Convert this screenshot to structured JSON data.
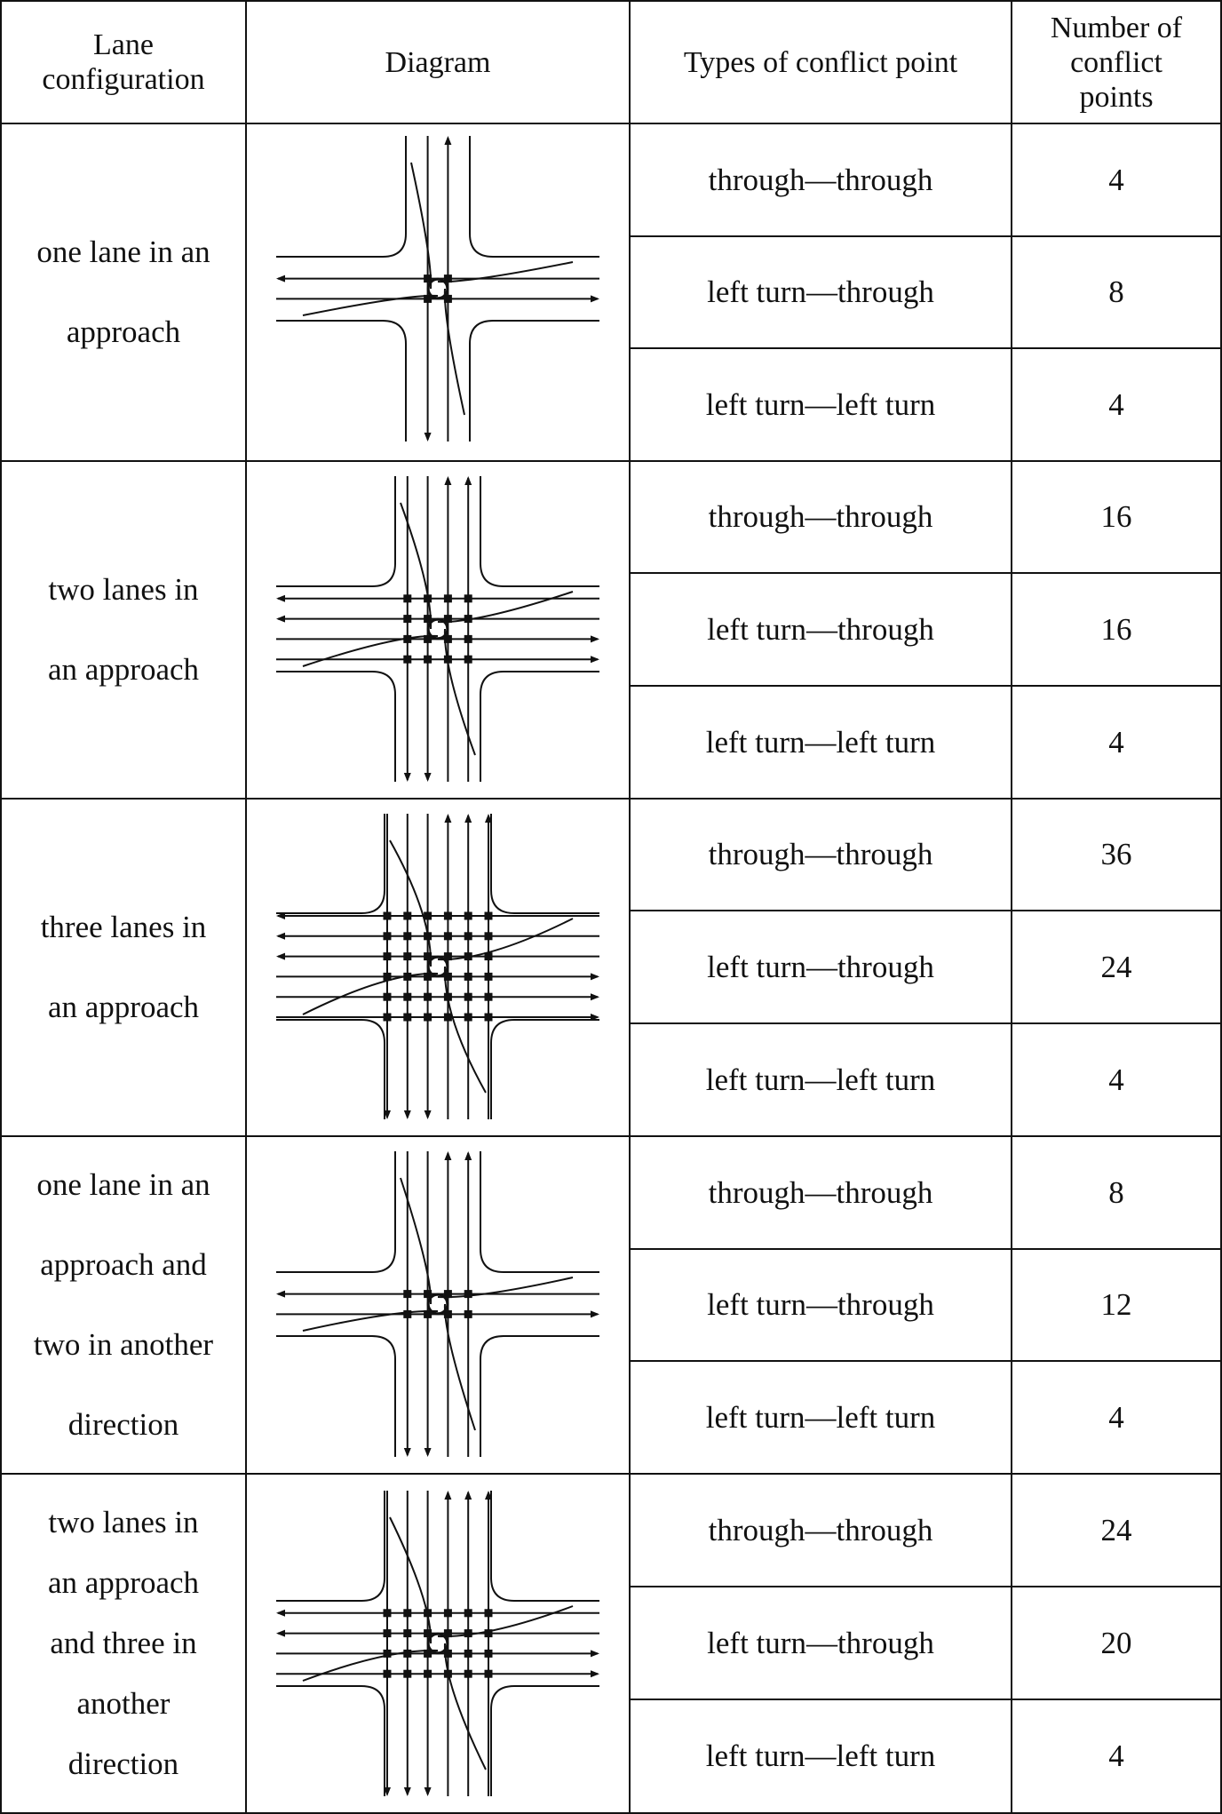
{
  "table": {
    "headers": {
      "lane_configuration": "Lane\nconfiguration",
      "diagram": "Diagram",
      "types": "Types of conflict point",
      "number": "Number of\nconflict\npoints"
    },
    "rows": [
      {
        "lane_configuration": "one lane in an\napproach",
        "diagram": {
          "lanes_ew": 1,
          "lanes_ns": 1
        },
        "conflicts": [
          {
            "type": "through—through",
            "count": "4"
          },
          {
            "type": "left turn—through",
            "count": "8"
          },
          {
            "type": "left turn—left turn",
            "count": "4"
          }
        ]
      },
      {
        "lane_configuration": "two lanes in\nan approach",
        "diagram": {
          "lanes_ew": 2,
          "lanes_ns": 2
        },
        "conflicts": [
          {
            "type": "through—through",
            "count": "16"
          },
          {
            "type": "left turn—through",
            "count": "16"
          },
          {
            "type": "left turn—left turn",
            "count": "4"
          }
        ]
      },
      {
        "lane_configuration": "three lanes in\nan approach",
        "diagram": {
          "lanes_ew": 3,
          "lanes_ns": 3
        },
        "conflicts": [
          {
            "type": "through—through",
            "count": "36"
          },
          {
            "type": "left turn—through",
            "count": "24"
          },
          {
            "type": "left turn—left turn",
            "count": "4"
          }
        ]
      },
      {
        "lane_configuration": "one lane in an\napproach and\ntwo in another\ndirection",
        "diagram": {
          "lanes_ew": 1,
          "lanes_ns": 2
        },
        "conflicts": [
          {
            "type": "through—through",
            "count": "8"
          },
          {
            "type": "left turn—through",
            "count": "12"
          },
          {
            "type": "left turn—left turn",
            "count": "4"
          }
        ]
      },
      {
        "lane_configuration": "two lanes in\nan approach\nand three in\nanother\ndirection",
        "diagram": {
          "lanes_ew": 2,
          "lanes_ns": 3
        },
        "conflicts": [
          {
            "type": "through—through",
            "count": "24"
          },
          {
            "type": "left turn—through",
            "count": "20"
          },
          {
            "type": "left turn—left turn",
            "count": "4"
          }
        ]
      }
    ]
  },
  "colors": {
    "line": "#111111",
    "background": "#ffffff"
  }
}
